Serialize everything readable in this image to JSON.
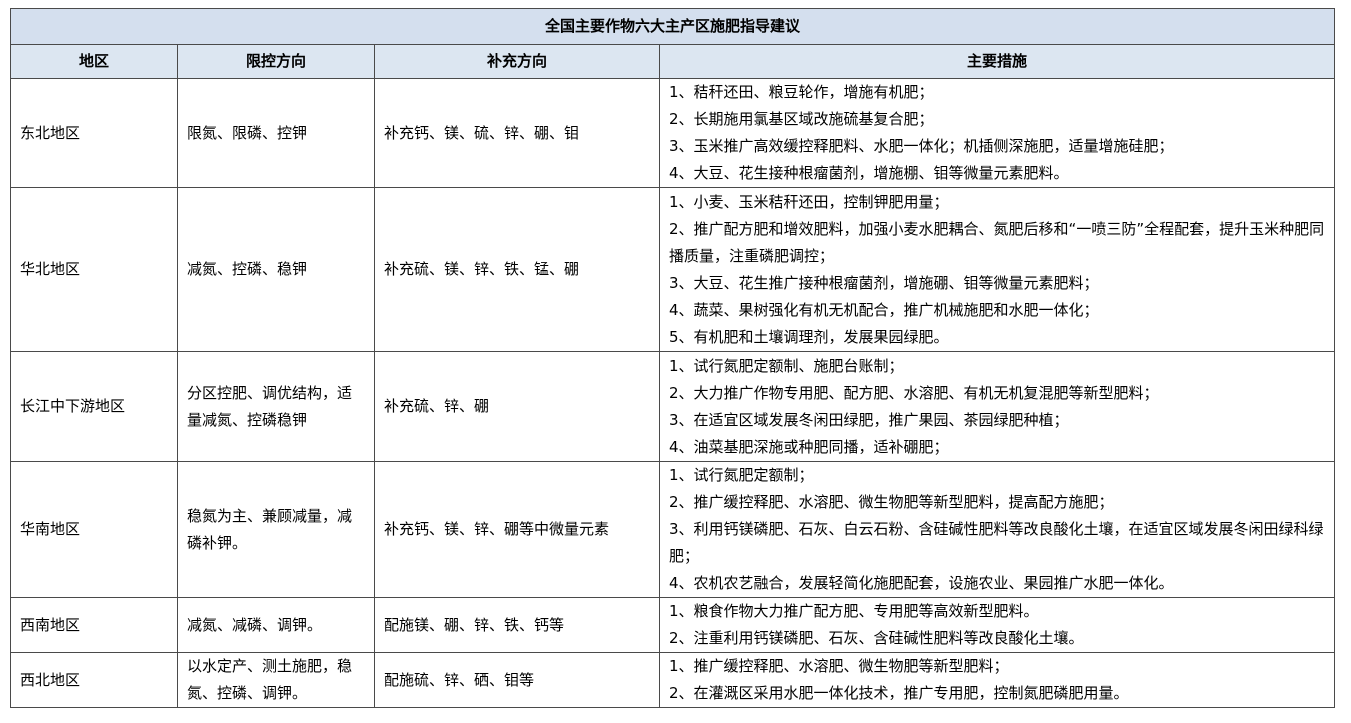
{
  "table": {
    "title": "全国主要作物六大主产区施肥指导建议",
    "headers": [
      "地区",
      "限控方向",
      "补充方向",
      "主要措施"
    ],
    "rows": [
      {
        "region": "东北地区",
        "limit": "限氮、限磷、控钾",
        "supplement": "补充钙、镁、硫、锌、硼、钼",
        "measures": [
          "1、秸秆还田、粮豆轮作，增施有机肥；",
          "2、长期施用氯基区域改施硫基复合肥；",
          "3、玉米推广高效缓控释肥料、水肥一体化；机插侧深施肥，适量增施硅肥；",
          "4、大豆、花生接种根瘤菌剂，增施棚、钼等微量元素肥料。"
        ]
      },
      {
        "region": "华北地区",
        "limit": "减氮、控磷、稳钾",
        "supplement": "补充硫、镁、锌、铁、锰、硼",
        "measures": [
          "1、小麦、玉米秸秆还田，控制钾肥用量；",
          "2、推广配方肥和增效肥料，加强小麦水肥耦合、氮肥后移和“一喷三防”全程配套，提升玉米种肥同播质量，注重磷肥调控；",
          "3、大豆、花生推广接种根瘤菌剂，增施硼、钼等微量元素肥料；",
          "4、蔬菜、果树强化有机无机配合，推广机械施肥和水肥一体化；",
          "5、有机肥和土壤调理剂，发展果园绿肥。"
        ]
      },
      {
        "region": "长江中下游地区",
        "limit": "分区控肥、调优结构，适量减氮、控磷稳钾",
        "supplement": "补充硫、锌、硼",
        "measures": [
          "1、试行氮肥定额制、施肥台账制；",
          "2、大力推广作物专用肥、配方肥、水溶肥、有机无机复混肥等新型肥料；",
          "3、在适宜区域发展冬闲田绿肥，推广果园、茶园绿肥种植；",
          "4、油菜基肥深施或种肥同播，适补硼肥；"
        ]
      },
      {
        "region": "华南地区",
        "limit": "稳氮为主、兼顾减量，减磷补钾。",
        "supplement": "补充钙、镁、锌、硼等中微量元素",
        "measures": [
          "1、试行氮肥定额制；",
          "2、推广缓控释肥、水溶肥、微生物肥等新型肥料，提高配方施肥；",
          "3、利用钙镁磷肥、石灰、白云石粉、含硅碱性肥料等改良酸化土壤，在适宜区域发展冬闲田绿科绿肥；",
          "4、农机农艺融合，发展轻简化施肥配套，设施农业、果园推广水肥一体化。"
        ]
      },
      {
        "region": "西南地区",
        "limit": "减氮、减磷、调钾。",
        "supplement": "配施镁、硼、锌、铁、钙等",
        "measures": [
          "1、粮食作物大力推广配方肥、专用肥等高效新型肥料。",
          "2、注重利用钙镁磷肥、石灰、含硅碱性肥料等改良酸化土壤。"
        ]
      },
      {
        "region": "西北地区",
        "limit": "以水定产、测土施肥，稳氮、控磷、调钾。",
        "supplement": "配施硫、锌、硒、钼等",
        "measures": [
          "1、推广缓控释肥、水溶肥、微生物肥等新型肥料；",
          "2、在灌溉区采用水肥一体化技术，推广专用肥，控制氮肥磷肥用量。"
        ]
      }
    ]
  }
}
